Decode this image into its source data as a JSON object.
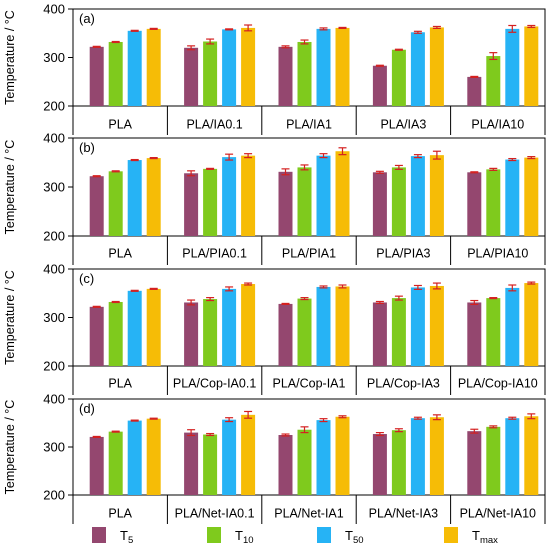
{
  "colors": {
    "T5": "#94476f",
    "T10": "#7fca1d",
    "T50": "#26b3f5",
    "Tmax": "#f6bc06",
    "error": "#d42020"
  },
  "legend": {
    "items": [
      {
        "key": "T5",
        "base": "T",
        "sub": "5"
      },
      {
        "key": "T10",
        "base": "T",
        "sub": "10"
      },
      {
        "key": "T50",
        "base": "T",
        "sub": "50"
      },
      {
        "key": "Tmax",
        "base": "T",
        "sub": "max"
      }
    ]
  },
  "chart_data": [
    {
      "type": "bar",
      "panel_label": "(a)",
      "ylabel": "Temperature / °C",
      "ylim": [
        200,
        400
      ],
      "yticks": [
        200,
        300,
        400
      ],
      "categories": [
        "PLA",
        "PLA/IA0.1",
        "PLA/IA1",
        "PLA/IA3",
        "PLA/IA10"
      ],
      "series": [
        {
          "name": "T5",
          "values": [
            322,
            320,
            322,
            283,
            260
          ],
          "errors": [
            1,
            4,
            2,
            1,
            1
          ]
        },
        {
          "name": "T10",
          "values": [
            332,
            333,
            332,
            316,
            303
          ],
          "errors": [
            1,
            5,
            4,
            1,
            7
          ]
        },
        {
          "name": "T50",
          "values": [
            355,
            358,
            359,
            352,
            359
          ],
          "errors": [
            1,
            1,
            2,
            2,
            7
          ]
        },
        {
          "name": "Tmax",
          "values": [
            359,
            361,
            361,
            362,
            364
          ],
          "errors": [
            1,
            6,
            1,
            2,
            2
          ]
        }
      ]
    },
    {
      "type": "bar",
      "panel_label": "(b)",
      "ylabel": "Temperature / °C",
      "ylim": [
        200,
        400
      ],
      "yticks": [
        200,
        300,
        400
      ],
      "categories": [
        "PLA",
        "PLA/PIA0.1",
        "PLA/PIA1",
        "PLA/PIA3",
        "PLA/PIA10"
      ],
      "series": [
        {
          "name": "T5",
          "values": [
            322,
            328,
            331,
            330,
            330
          ],
          "errors": [
            1,
            5,
            6,
            2,
            1
          ]
        },
        {
          "name": "T10",
          "values": [
            332,
            337,
            340,
            340,
            336
          ],
          "errors": [
            1,
            1,
            5,
            4,
            2
          ]
        },
        {
          "name": "T50",
          "values": [
            355,
            361,
            364,
            363,
            356
          ],
          "errors": [
            1,
            6,
            4,
            3,
            2
          ]
        },
        {
          "name": "Tmax",
          "values": [
            359,
            364,
            373,
            365,
            360
          ],
          "errors": [
            1,
            4,
            7,
            8,
            2
          ]
        }
      ]
    },
    {
      "type": "bar",
      "panel_label": "(c)",
      "ylabel": "Temperature / °C",
      "ylim": [
        200,
        400
      ],
      "yticks": [
        200,
        300,
        400
      ],
      "categories": [
        "PLA",
        "PLA/Cop-IA0.1",
        "PLA/Cop-IA1",
        "PLA/Cop-IA3",
        "PLA/Cop-IA10"
      ],
      "series": [
        {
          "name": "T5",
          "values": [
            322,
            331,
            328,
            331,
            331
          ],
          "errors": [
            1,
            5,
            1,
            2,
            4
          ]
        },
        {
          "name": "T10",
          "values": [
            332,
            338,
            339,
            340,
            340
          ],
          "errors": [
            1,
            3,
            2,
            4,
            1
          ]
        },
        {
          "name": "T50",
          "values": [
            355,
            359,
            363,
            362,
            361
          ],
          "errors": [
            1,
            4,
            2,
            4,
            6
          ]
        },
        {
          "name": "Tmax",
          "values": [
            359,
            369,
            364,
            365,
            371
          ],
          "errors": [
            1,
            2,
            3,
            6,
            2
          ]
        }
      ]
    },
    {
      "type": "bar",
      "panel_label": "(d)",
      "ylabel": "Temperature / °C",
      "ylim": [
        200,
        400
      ],
      "yticks": [
        200,
        300,
        400
      ],
      "categories": [
        "PLA",
        "PLA/Net-IA0.1",
        "PLA/Net-IA1",
        "PLA/Net-IA3",
        "PLA/Net-IA10"
      ],
      "series": [
        {
          "name": "T5",
          "values": [
            321,
            330,
            325,
            327,
            333
          ],
          "errors": [
            1,
            6,
            2,
            3,
            4
          ]
        },
        {
          "name": "T10",
          "values": [
            332,
            326,
            336,
            335,
            342
          ],
          "errors": [
            1,
            2,
            6,
            3,
            2
          ]
        },
        {
          "name": "T50",
          "values": [
            355,
            357,
            356,
            360,
            360
          ],
          "errors": [
            1,
            4,
            3,
            2,
            2
          ]
        },
        {
          "name": "Tmax",
          "values": [
            359,
            367,
            363,
            362,
            364
          ],
          "errors": [
            1,
            7,
            2,
            5,
            5
          ]
        }
      ]
    }
  ]
}
